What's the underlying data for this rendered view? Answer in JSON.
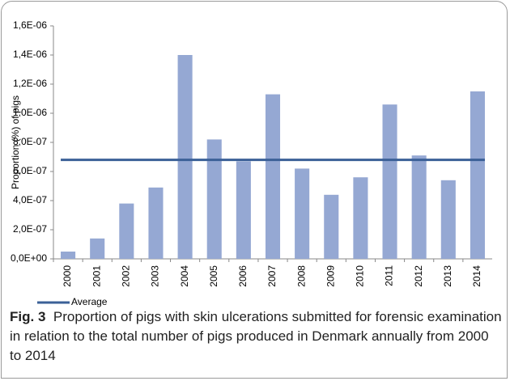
{
  "chart_data": {
    "type": "bar",
    "y_label": "Proportion (%) of pigs",
    "categories": [
      "2000",
      "2001",
      "2002",
      "2003",
      "2004",
      "2005",
      "2006",
      "2007",
      "2008",
      "2009",
      "2010",
      "2011",
      "2012",
      "2013",
      "2014"
    ],
    "series": [
      {
        "color": "#95a8d3",
        "values": [
          5e-08,
          1.4e-07,
          3.8e-07,
          4.9e-07,
          1.4e-06,
          8.2e-07,
          6.7e-07,
          1.13e-06,
          6.2e-07,
          4.4e-07,
          5.6e-07,
          1.06e-06,
          7.1e-07,
          5.4e-07,
          1.15e-06
        ]
      }
    ],
    "average": {
      "name": "Average",
      "value": 6.8e-07,
      "color": "#3b6097"
    },
    "ylim": [
      0,
      1.6e-06
    ],
    "yticks": [
      {
        "value": 0,
        "label": "0,0E+00"
      },
      {
        "value": 2e-07,
        "label": "2,0E-07"
      },
      {
        "value": 4e-07,
        "label": "4,0E-07"
      },
      {
        "value": 6e-07,
        "label": "6,0E-07"
      },
      {
        "value": 8e-07,
        "label": "8,0E-07"
      },
      {
        "value": 1e-06,
        "label": "1,0E-06"
      },
      {
        "value": 1.2e-06,
        "label": "1,2E-06"
      },
      {
        "value": 1.4e-06,
        "label": "1,4E-06"
      },
      {
        "value": 1.6e-06,
        "label": "1,6E-06"
      }
    ],
    "caption": {
      "label": "Fig. 3",
      "text": "Proportion of pigs with skin ulcerations submitted for forensic examination in relation to the total number of pigs produced in Denmark annually from 2000 to 2014"
    }
  }
}
